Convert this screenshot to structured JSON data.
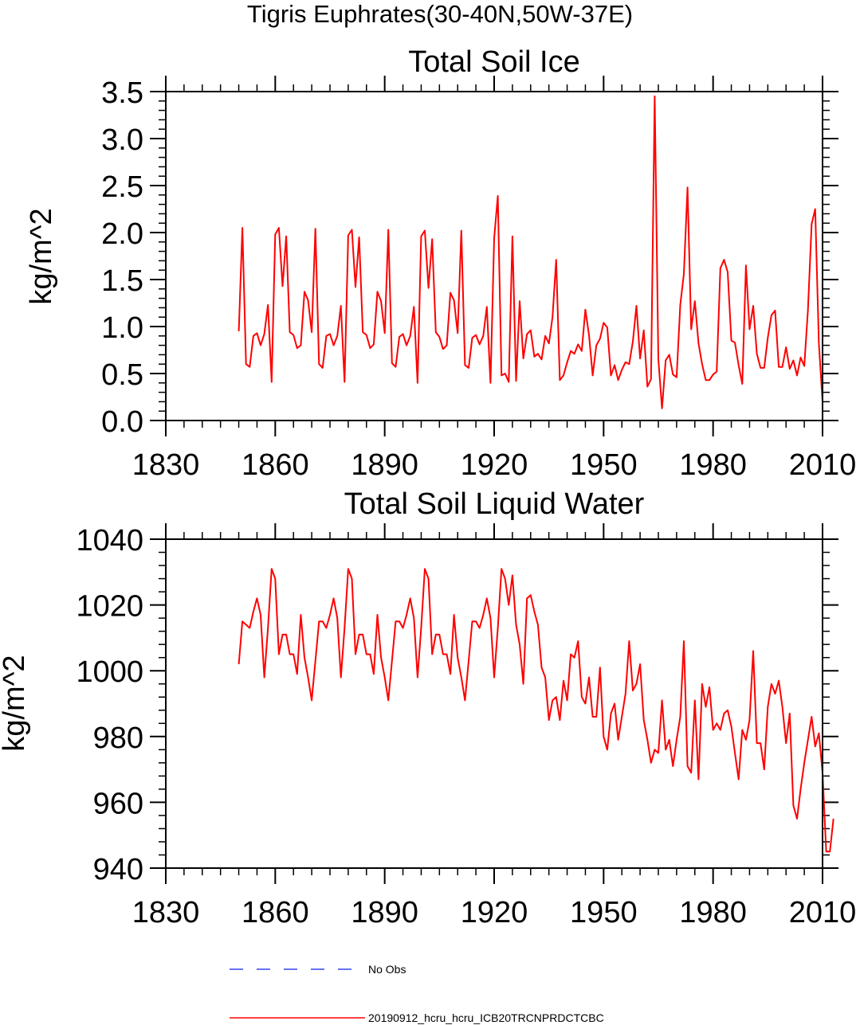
{
  "figure_title": "Tigris Euphrates(30-40N,50W-37E)",
  "legend": [
    {
      "label": "No Obs",
      "color": "#3344ee",
      "style": "dashed"
    },
    {
      "label": "20190912_hcru_hcru_ICB20TRCNPRDCTCBC",
      "color": "#ff0000",
      "style": "solid"
    }
  ],
  "chart_data": [
    {
      "type": "line",
      "title": "Total Soil Ice",
      "xlabel": "",
      "ylabel": "kg/m^2",
      "xlim": [
        1830,
        2010
      ],
      "ylim": [
        0,
        3.5
      ],
      "xticks": [
        1830,
        1860,
        1890,
        1920,
        1950,
        1980,
        2010
      ],
      "xtick_labels": [
        "1830",
        "1860",
        "1890",
        "1920",
        "1950",
        "1980",
        "2010"
      ],
      "yticks": [
        0,
        0.5,
        1,
        1.5,
        2,
        2.5,
        3,
        3.5
      ],
      "ytick_labels": [
        "0.0",
        "0.5",
        "1.0",
        "1.5",
        "2.0",
        "2.5",
        "3.0",
        "3.5"
      ],
      "y_minor_step": 0.1,
      "x_minor_step": 5,
      "series": [
        {
          "name": "20190912_hcru_hcru_ICB20TRCNPRDCTCBC",
          "color": "#ff0000",
          "x_start": 1850,
          "x_step": 1,
          "values": [
            0.95,
            2.05,
            0.6,
            0.57,
            0.9,
            0.93,
            0.8,
            0.92,
            1.23,
            0.41,
            1.98,
            2.05,
            1.43,
            1.96,
            0.94,
            0.91,
            0.77,
            0.8,
            1.37,
            1.28,
            0.94,
            2.04,
            0.6,
            0.56,
            0.9,
            0.92,
            0.8,
            0.9,
            1.22,
            0.41,
            1.97,
            2.03,
            1.42,
            1.95,
            0.94,
            0.91,
            0.77,
            0.81,
            1.37,
            1.27,
            0.93,
            2.03,
            0.61,
            0.57,
            0.89,
            0.92,
            0.8,
            0.9,
            1.21,
            0.4,
            1.96,
            2.02,
            1.41,
            1.93,
            0.94,
            0.89,
            0.76,
            0.8,
            1.36,
            1.28,
            0.93,
            2.02,
            0.59,
            0.56,
            0.88,
            0.91,
            0.81,
            0.9,
            1.21,
            0.4,
            1.94,
            2.39,
            0.48,
            0.5,
            0.41,
            1.96,
            0.42,
            1.27,
            0.66,
            0.92,
            0.96,
            0.68,
            0.71,
            0.65,
            0.9,
            0.82,
            1.1,
            1.71,
            0.43,
            0.48,
            0.62,
            0.74,
            0.71,
            0.81,
            0.74,
            1.18,
            0.91,
            0.48,
            0.8,
            0.87,
            1.04,
            0.99,
            0.48,
            0.59,
            0.43,
            0.54,
            0.62,
            0.6,
            0.84,
            1.22,
            0.66,
            0.96,
            0.36,
            0.44,
            3.45,
            0.65,
            0.13,
            0.64,
            0.7,
            0.49,
            0.46,
            1.23,
            1.56,
            2.48,
            0.97,
            1.27,
            0.82,
            0.6,
            0.43,
            0.43,
            0.49,
            0.52,
            1.62,
            1.71,
            1.58,
            0.85,
            0.83,
            0.59,
            0.39,
            1.65,
            0.97,
            1.22,
            0.71,
            0.56,
            0.56,
            0.88,
            1.12,
            1.17,
            0.57,
            0.57,
            0.78,
            0.55,
            0.64,
            0.48,
            0.67,
            0.58,
            1.18,
            2.09,
            2.25,
            0.82,
            0.2
          ]
        }
      ]
    },
    {
      "type": "line",
      "title": "Total Soil Liquid Water",
      "xlabel": "",
      "ylabel": "kg/m^2",
      "xlim": [
        1830,
        2010
      ],
      "ylim": [
        940,
        1040
      ],
      "xticks": [
        1830,
        1860,
        1890,
        1920,
        1950,
        1980,
        2010
      ],
      "xtick_labels": [
        "1830",
        "1860",
        "1890",
        "1920",
        "1950",
        "1980",
        "2010"
      ],
      "yticks": [
        940,
        960,
        980,
        1000,
        1020,
        1040
      ],
      "ytick_labels": [
        "940",
        "960",
        "980",
        "1000",
        "1020",
        "1040"
      ],
      "y_minor_step": 4,
      "x_minor_step": 5,
      "series": [
        {
          "name": "20190912_hcru_hcru_ICB20TRCNPRDCTCBC",
          "color": "#ff0000",
          "x_start": 1850,
          "x_step": 1,
          "values": [
            1002,
            1015,
            1014,
            1013,
            1018,
            1022,
            1017,
            998,
            1013,
            1031,
            1028,
            1005,
            1011,
            1011,
            1005,
            1005,
            999,
            1017,
            1004,
            998,
            991,
            1003,
            1015,
            1015,
            1013,
            1017,
            1022,
            1016,
            998,
            1013,
            1031,
            1028,
            1005,
            1011,
            1011,
            1005,
            1005,
            999,
            1017,
            1004,
            998,
            991,
            1003,
            1015,
            1015,
            1013,
            1017,
            1022,
            1016,
            998,
            1013,
            1031,
            1028,
            1005,
            1011,
            1011,
            1005,
            1005,
            999,
            1017,
            1004,
            998,
            991,
            1003,
            1015,
            1015,
            1013,
            1017,
            1022,
            1016,
            998,
            1013,
            1031,
            1028,
            1020,
            1029,
            1014,
            1008,
            996,
            1022,
            1023,
            1018,
            1014,
            1001,
            998,
            985,
            991,
            992,
            985,
            997,
            991,
            1005,
            1004,
            1009,
            992,
            990,
            998,
            986,
            986,
            1001,
            980,
            976,
            987,
            990,
            979,
            986,
            993,
            1009,
            994,
            996,
            1002,
            985,
            979,
            972,
            976,
            975,
            991,
            976,
            979,
            971,
            979,
            986,
            1009,
            971,
            969,
            991,
            967,
            996,
            989,
            995,
            982,
            984,
            982,
            987,
            988,
            983,
            975,
            967,
            982,
            979,
            985,
            1006,
            978,
            978,
            970,
            989,
            996,
            993,
            997,
            989,
            978,
            987,
            959,
            955,
            964,
            972,
            979,
            986,
            977,
            981,
            969,
            945,
            945,
            955
          ]
        }
      ]
    }
  ]
}
